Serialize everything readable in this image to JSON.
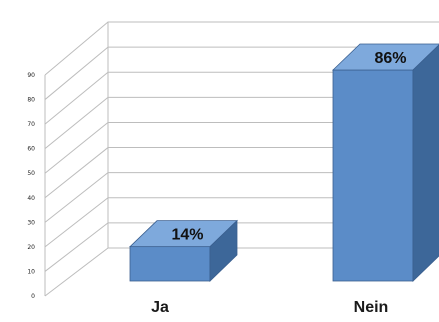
{
  "chart_data": {
    "type": "bar",
    "style": "3d-column",
    "categories": [
      "Ja",
      "Nein"
    ],
    "values": [
      14,
      86
    ],
    "data_labels": [
      "14%",
      "86%"
    ],
    "ylim": [
      0,
      90
    ],
    "yticks": [
      0,
      10,
      20,
      30,
      40,
      50,
      60,
      70,
      80,
      90
    ],
    "grid": true,
    "legend": "none",
    "colors": {
      "bar_front": "#5b8cc8",
      "bar_top": "#7ea9dc",
      "bar_side": "#3d6799",
      "bar_edge": "#3a5f8f",
      "grid": "#bdbdbd"
    }
  }
}
